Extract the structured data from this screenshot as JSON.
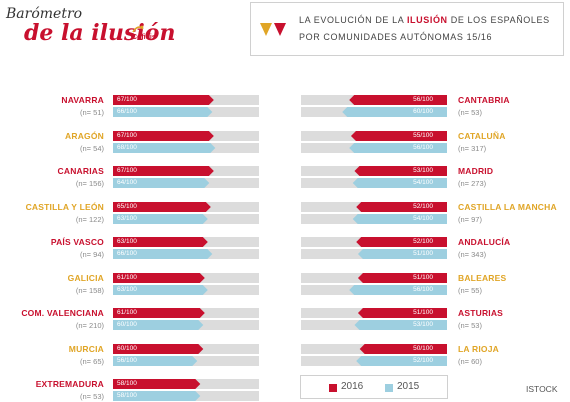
{
  "logo": {
    "line1": "Barómetro",
    "line2": "de la ilusión",
    "sponsor": "Cofidis"
  },
  "header": {
    "title_pre": "LA EVOLUCIÓN DE LA ",
    "title_highlight": "ILUSIÓN",
    "title_post": " DE LOS ESPAÑOLES POR COMUNIDADES AUTÓNOMAS 15/16"
  },
  "credit": "ISTOCK",
  "colors": {
    "series_2016": "#c8102e",
    "series_2015": "#9dcfe0",
    "track": "#dcdcdc",
    "name_red": "#c8102e",
    "name_gold": "#e0a526"
  },
  "chart_data": {
    "type": "bar",
    "value_max": 100,
    "series": [
      {
        "name": "2016"
      },
      {
        "name": "2015"
      }
    ],
    "regions": [
      {
        "name": "NAVARRA",
        "n_label": "(n= 51)",
        "name_color": "red",
        "v2016": 67,
        "v2016_label": "67/100",
        "v2015": 66,
        "v2015_label": "66/100"
      },
      {
        "name": "ARAGÓN",
        "n_label": "(n= 54)",
        "name_color": "gold",
        "v2016": 67,
        "v2016_label": "67/100",
        "v2015": 68,
        "v2015_label": "68/100"
      },
      {
        "name": "CANARIAS",
        "n_label": "(n= 156)",
        "name_color": "red",
        "v2016": 67,
        "v2016_label": "67/100",
        "v2015": 64,
        "v2015_label": "64/100"
      },
      {
        "name": "CASTILLA Y LEÓN",
        "n_label": "(n= 122)",
        "name_color": "gold",
        "v2016": 65,
        "v2016_label": "65/100",
        "v2015": 63,
        "v2015_label": "63/100"
      },
      {
        "name": "PAÍS VASCO",
        "n_label": "(n= 94)",
        "name_color": "red",
        "v2016": 63,
        "v2016_label": "63/100",
        "v2015": 66,
        "v2015_label": "66/100"
      },
      {
        "name": "GALICIA",
        "n_label": "(n= 158)",
        "name_color": "gold",
        "v2016": 61,
        "v2016_label": "61/100",
        "v2015": 63,
        "v2015_label": "63/100"
      },
      {
        "name": "COM. VALENCIANA",
        "n_label": "(n= 210)",
        "name_color": "red",
        "v2016": 61,
        "v2016_label": "61/100",
        "v2015": 60,
        "v2015_label": "60/100"
      },
      {
        "name": "MURCIA",
        "n_label": "(n= 65)",
        "name_color": "gold",
        "v2016": 60,
        "v2016_label": "60/100",
        "v2015": 56,
        "v2015_label": "56/100"
      },
      {
        "name": "EXTREMADURA",
        "n_label": "(n= 53)",
        "name_color": "red",
        "v2016": 58,
        "v2016_label": "58/100",
        "v2015": 58,
        "v2015_label": "58/100"
      },
      {
        "name": "CANTABRIA",
        "n_label": "(n= 53)",
        "name_color": "red",
        "v2016": 56,
        "v2016_label": "56/100",
        "v2015": 60,
        "v2015_label": "60/100"
      },
      {
        "name": "CATALUÑA",
        "n_label": "(n= 317)",
        "name_color": "gold",
        "v2016": 55,
        "v2016_label": "55/100",
        "v2015": 56,
        "v2015_label": "56/100"
      },
      {
        "name": "MADRID",
        "n_label": "(n= 273)",
        "name_color": "red",
        "v2016": 53,
        "v2016_label": "53/100",
        "v2015": 54,
        "v2015_label": "54/100"
      },
      {
        "name": "CASTILLA LA MANCHA",
        "n_label": "(n= 97)",
        "name_color": "gold",
        "v2016": 52,
        "v2016_label": "52/100",
        "v2015": 54,
        "v2015_label": "54/100"
      },
      {
        "name": "ANDALUCÍA",
        "n_label": "(n= 343)",
        "name_color": "red",
        "v2016": 52,
        "v2016_label": "52/100",
        "v2015": 51,
        "v2015_label": "51/100"
      },
      {
        "name": "BALEARES",
        "n_label": "(n= 55)",
        "name_color": "gold",
        "v2016": 51,
        "v2016_label": "51/100",
        "v2015": 56,
        "v2015_label": "56/100"
      },
      {
        "name": "ASTURIAS",
        "n_label": "(n= 53)",
        "name_color": "red",
        "v2016": 51,
        "v2016_label": "51/100",
        "v2015": 53,
        "v2015_label": "53/100"
      },
      {
        "name": "LA RIOJA",
        "n_label": "(n= 60)",
        "name_color": "gold",
        "v2016": 50,
        "v2016_label": "50/100",
        "v2015": 52,
        "v2015_label": "52/100"
      }
    ]
  }
}
